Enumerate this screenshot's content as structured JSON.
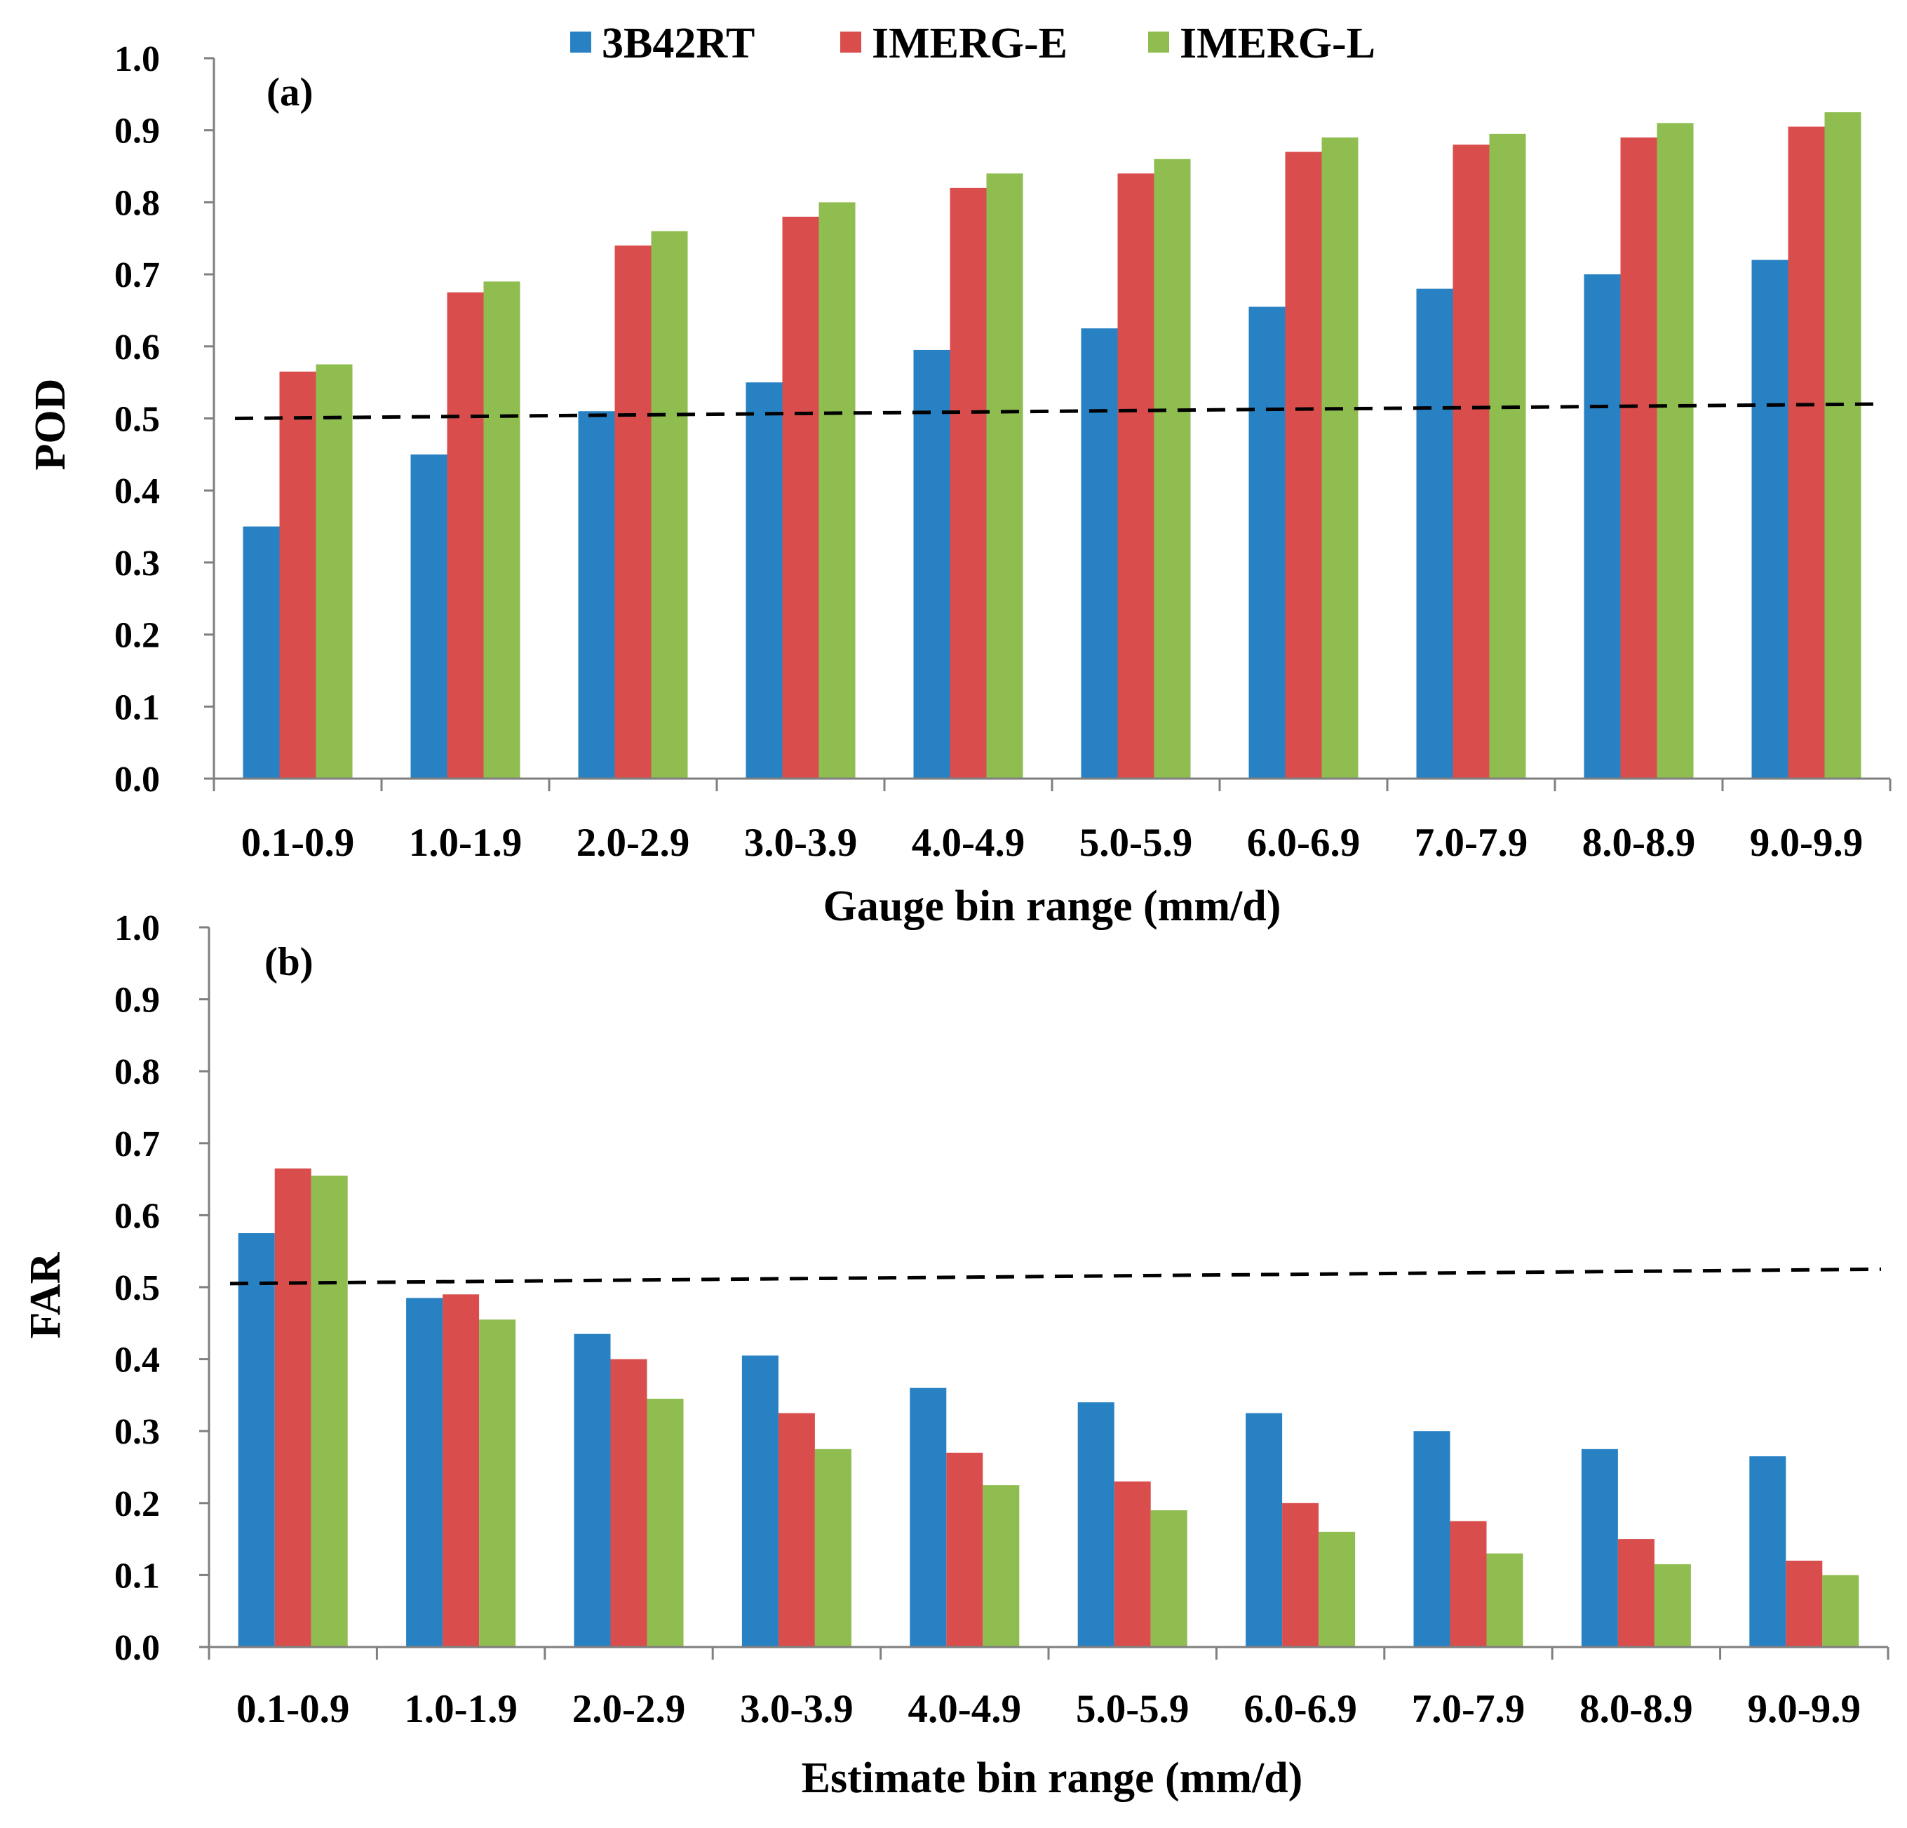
{
  "legend": [
    {
      "name": "3B42RT",
      "color": "#2781C3"
    },
    {
      "name": "IMERG-E",
      "color": "#D94E4D"
    },
    {
      "name": "IMERG-L",
      "color": "#8FBD50"
    }
  ],
  "chart_data": [
    {
      "type": "bar",
      "panel_label": "(a)",
      "ylabel": "POD",
      "xlabel": "Gauge bin range (mm/d)",
      "ylim": [
        0,
        1
      ],
      "yticks": [
        "0.0",
        "0.1",
        "0.2",
        "0.3",
        "0.4",
        "0.5",
        "0.6",
        "0.7",
        "0.8",
        "0.9",
        "1.0"
      ],
      "categories": [
        "0.1-0.9",
        "1.0-1.9",
        "2.0-2.9",
        "3.0-3.9",
        "4.0-4.9",
        "5.0-5.9",
        "6.0-6.9",
        "7.0-7.9",
        "8.0-8.9",
        "9.0-9.9"
      ],
      "series": [
        {
          "name": "3B42RT",
          "values": [
            0.35,
            0.45,
            0.51,
            0.55,
            0.595,
            0.625,
            0.655,
            0.68,
            0.7,
            0.72
          ]
        },
        {
          "name": "IMERG-E",
          "values": [
            0.565,
            0.675,
            0.74,
            0.78,
            0.82,
            0.84,
            0.87,
            0.88,
            0.89,
            0.905
          ]
        },
        {
          "name": "IMERG-L",
          "values": [
            0.575,
            0.69,
            0.76,
            0.8,
            0.84,
            0.86,
            0.89,
            0.895,
            0.91,
            0.925
          ]
        }
      ],
      "reference_line": {
        "style": "dashed",
        "y_start": 0.5,
        "y_end": 0.52
      }
    },
    {
      "type": "bar",
      "panel_label": "(b)",
      "ylabel": "FAR",
      "xlabel": "Estimate bin range (mm/d)",
      "ylim": [
        0,
        1
      ],
      "yticks": [
        "0.0",
        "0.1",
        "0.2",
        "0.3",
        "0.4",
        "0.5",
        "0.6",
        "0.7",
        "0.8",
        "0.9",
        "1.0"
      ],
      "categories": [
        "0.1-0.9",
        "1.0-1.9",
        "2.0-2.9",
        "3.0-3.9",
        "4.0-4.9",
        "5.0-5.9",
        "6.0-6.9",
        "7.0-7.9",
        "8.0-8.9",
        "9.0-9.9"
      ],
      "series": [
        {
          "name": "3B42RT",
          "values": [
            0.575,
            0.485,
            0.435,
            0.405,
            0.36,
            0.34,
            0.325,
            0.3,
            0.275,
            0.265
          ]
        },
        {
          "name": "IMERG-E",
          "values": [
            0.665,
            0.49,
            0.4,
            0.325,
            0.27,
            0.23,
            0.2,
            0.175,
            0.15,
            0.12
          ]
        },
        {
          "name": "IMERG-L",
          "values": [
            0.655,
            0.455,
            0.345,
            0.275,
            0.225,
            0.19,
            0.16,
            0.13,
            0.115,
            0.1
          ]
        }
      ],
      "reference_line": {
        "style": "dashed",
        "y_start": 0.505,
        "y_end": 0.525
      }
    }
  ]
}
